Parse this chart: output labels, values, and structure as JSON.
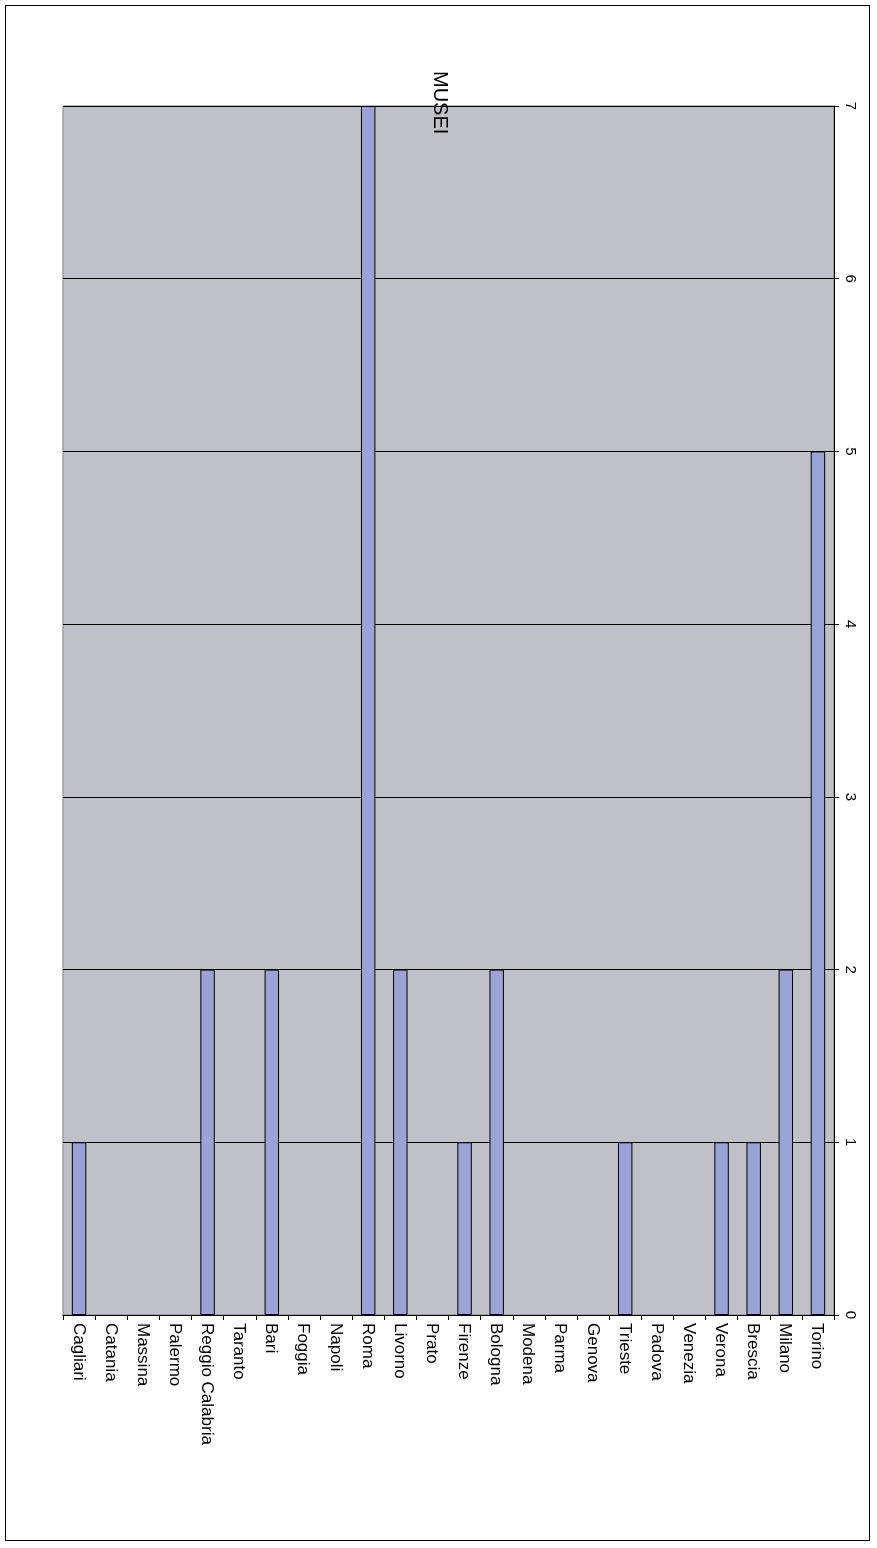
{
  "chart_data": {
    "type": "bar",
    "title": "MUSEI",
    "categories": [
      "Cagliari",
      "Catania",
      "Massina",
      "Palermo",
      "Reggio Calabria",
      "Taranto",
      "Bari",
      "Foggia",
      "Napoli",
      "Roma",
      "Livorno",
      "Prato",
      "Firenze",
      "Bologna",
      "Modena",
      "Parma",
      "Genova",
      "Trieste",
      "Padova",
      "Venezia",
      "Verona",
      "Brescia",
      "Milano",
      "Torino"
    ],
    "values": [
      1,
      0,
      0,
      0,
      2,
      0,
      2,
      0,
      0,
      7,
      2,
      0,
      1,
      2,
      0,
      0,
      0,
      1,
      0,
      0,
      1,
      1,
      2,
      5
    ],
    "color": "#99a3d6",
    "ylim": [
      0,
      7
    ],
    "yticks": [
      0,
      1,
      2,
      3,
      4,
      5,
      6,
      7
    ],
    "grid": "y"
  }
}
